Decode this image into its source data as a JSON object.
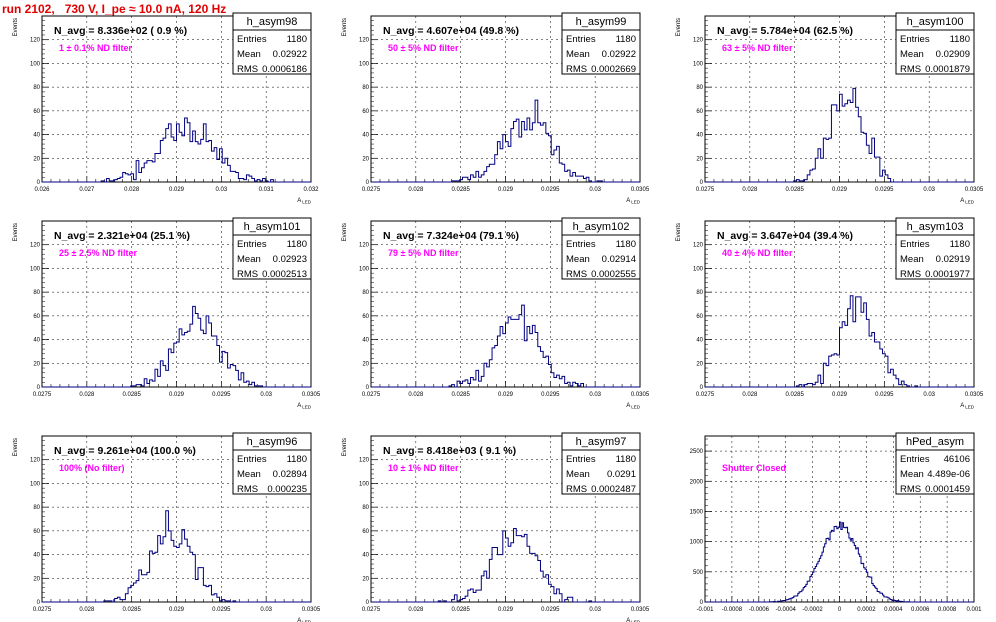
{
  "page": {
    "title": "run 2102,   730 V, I_pe ≈ 10.0 nA, 120 Hz"
  },
  "chart_data": [
    {
      "type": "bar",
      "name": "h_asym98",
      "title": "h_asym98",
      "annotation": "N_avg = 8.336e+02 ( 0.9 %)",
      "filter_label": "1 ± 0.1% ND filter",
      "stats": {
        "entries": "1180",
        "mean": "0.02922",
        "rms": "0.0006186"
      },
      "xlabel": "A_LED",
      "ylabel": "Events",
      "xlim": [
        0.026,
        0.032
      ],
      "ylim": [
        0,
        140
      ],
      "x_ticks": [
        0.026,
        0.027,
        0.028,
        0.029,
        0.03,
        0.031,
        0.032
      ],
      "x_tick_labels": [
        "0.026",
        "0.027",
        "0.028",
        "0.029",
        "0.03",
        "0.031",
        "0.032"
      ],
      "y_ticks": [
        0,
        20,
        40,
        60,
        80,
        100,
        120
      ],
      "mu": 0.02922,
      "sigma": 0.0006186,
      "bin_width": 6e-05,
      "entries": 1180,
      "seed": 11
    },
    {
      "type": "bar",
      "name": "h_asym99",
      "title": "h_asym99",
      "annotation": "N_avg = 4.607e+04 (49.8 %)",
      "filter_label": "50 ± 5% ND filter",
      "stats": {
        "entries": "1180",
        "mean": "0.02922",
        "rms": "0.0002669"
      },
      "xlabel": "A_LED",
      "ylabel": "Events",
      "xlim": [
        0.0275,
        0.0305
      ],
      "ylim": [
        0,
        140
      ],
      "x_ticks": [
        0.0275,
        0.028,
        0.0285,
        0.029,
        0.0295,
        0.03,
        0.0305
      ],
      "x_tick_labels": [
        "0.0275",
        "0.028",
        "0.0285",
        "0.029",
        "0.0295",
        "0.03",
        "0.0305"
      ],
      "y_ticks": [
        0,
        20,
        40,
        60,
        80,
        100,
        120
      ],
      "mu": 0.02922,
      "sigma": 0.0002669,
      "bin_width": 3e-05,
      "entries": 1180,
      "seed": 23
    },
    {
      "type": "bar",
      "name": "h_asym100",
      "title": "h_asym100",
      "annotation": "N_avg = 5.784e+04 (62.5 %)",
      "filter_label": "63 ± 5% ND filter",
      "stats": {
        "entries": "1180",
        "mean": "0.02909",
        "rms": "0.0001879"
      },
      "xlabel": "A_LED",
      "ylabel": "Events",
      "xlim": [
        0.0275,
        0.0305
      ],
      "ylim": [
        0,
        140
      ],
      "x_ticks": [
        0.0275,
        0.028,
        0.0285,
        0.029,
        0.0295,
        0.03,
        0.0305
      ],
      "x_tick_labels": [
        "0.0275",
        "0.028",
        "0.0285",
        "0.029",
        "0.0295",
        "0.03",
        "0.0305"
      ],
      "y_ticks": [
        0,
        20,
        40,
        60,
        80,
        100,
        120
      ],
      "mu": 0.02909,
      "sigma": 0.0001879,
      "bin_width": 3e-05,
      "entries": 1180,
      "seed": 37
    },
    {
      "type": "bar",
      "name": "h_asym101",
      "title": "h_asym101",
      "annotation": "N_avg = 2.321e+04 (25.1 %)",
      "filter_label": "25 ± 2.5% ND filter",
      "stats": {
        "entries": "1180",
        "mean": "0.02923",
        "rms": "0.0002513"
      },
      "xlabel": "A_LED",
      "ylabel": "Events",
      "xlim": [
        0.0275,
        0.0305
      ],
      "ylim": [
        0,
        140
      ],
      "x_ticks": [
        0.0275,
        0.028,
        0.0285,
        0.029,
        0.0295,
        0.03,
        0.0305
      ],
      "x_tick_labels": [
        "0.0275",
        "0.028",
        "0.0285",
        "0.029",
        "0.0295",
        "0.03",
        "0.0305"
      ],
      "y_ticks": [
        0,
        20,
        40,
        60,
        80,
        100,
        120
      ],
      "mu": 0.02923,
      "sigma": 0.0002513,
      "bin_width": 3e-05,
      "entries": 1180,
      "seed": 41
    },
    {
      "type": "bar",
      "name": "h_asym102",
      "title": "h_asym102",
      "annotation": "N_avg = 7.324e+04 (79.1 %)",
      "filter_label": "79 ± 5% ND filter",
      "stats": {
        "entries": "1180",
        "mean": "0.02914",
        "rms": "0.0002555"
      },
      "xlabel": "A_LED",
      "ylabel": "Events",
      "xlim": [
        0.0275,
        0.0305
      ],
      "ylim": [
        0,
        140
      ],
      "x_ticks": [
        0.0275,
        0.028,
        0.0285,
        0.029,
        0.0295,
        0.03,
        0.0305
      ],
      "x_tick_labels": [
        "0.0275",
        "0.028",
        "0.0285",
        "0.029",
        "0.0295",
        "0.03",
        "0.0305"
      ],
      "y_ticks": [
        0,
        20,
        40,
        60,
        80,
        100,
        120
      ],
      "mu": 0.02914,
      "sigma": 0.0002555,
      "bin_width": 3e-05,
      "entries": 1180,
      "seed": 53
    },
    {
      "type": "bar",
      "name": "h_asym103",
      "title": "h_asym103",
      "annotation": "N_avg = 3.647e+04 (39.4 %)",
      "filter_label": "40 ± 4% ND filter",
      "stats": {
        "entries": "1180",
        "mean": "0.02919",
        "rms": "0.0001977"
      },
      "xlabel": "A_LED",
      "ylabel": "Events",
      "xlim": [
        0.0275,
        0.0305
      ],
      "ylim": [
        0,
        140
      ],
      "x_ticks": [
        0.0275,
        0.028,
        0.0285,
        0.029,
        0.0295,
        0.03,
        0.0305
      ],
      "x_tick_labels": [
        "0.0275",
        "0.028",
        "0.0285",
        "0.029",
        "0.0295",
        "0.03",
        "0.0305"
      ],
      "y_ticks": [
        0,
        20,
        40,
        60,
        80,
        100,
        120
      ],
      "mu": 0.02919,
      "sigma": 0.0001977,
      "bin_width": 3e-05,
      "entries": 1180,
      "seed": 67
    },
    {
      "type": "bar",
      "name": "h_asym96",
      "title": "h_asym96",
      "annotation": "N_avg = 9.261e+04 (100.0 %)",
      "filter_label": "100% (No filter)",
      "stats": {
        "entries": "1180",
        "mean": "0.02894",
        "rms": "0.000235"
      },
      "xlabel": "A_LED",
      "ylabel": "Events",
      "xlim": [
        0.0275,
        0.0305
      ],
      "ylim": [
        0,
        140
      ],
      "x_ticks": [
        0.0275,
        0.028,
        0.0285,
        0.029,
        0.0295,
        0.03,
        0.0305
      ],
      "x_tick_labels": [
        "0.0275",
        "0.028",
        "0.0285",
        "0.029",
        "0.0295",
        "0.03",
        "0.0305"
      ],
      "y_ticks": [
        0,
        20,
        40,
        60,
        80,
        100,
        120
      ],
      "mu": 0.02894,
      "sigma": 0.000235,
      "bin_width": 3e-05,
      "entries": 1180,
      "seed": 79
    },
    {
      "type": "bar",
      "name": "h_asym97",
      "title": "h_asym97",
      "annotation": "N_avg = 8.418e+03 ( 9.1 %)",
      "filter_label": "10 ± 1% ND filter",
      "stats": {
        "entries": "1180",
        "mean": "0.0291",
        "rms": "0.0002487"
      },
      "xlabel": "A_LED",
      "ylabel": "Events",
      "xlim": [
        0.0275,
        0.0305
      ],
      "ylim": [
        0,
        140
      ],
      "x_ticks": [
        0.0275,
        0.028,
        0.0285,
        0.029,
        0.0295,
        0.03,
        0.0305
      ],
      "x_tick_labels": [
        "0.0275",
        "0.028",
        "0.0285",
        "0.029",
        "0.0295",
        "0.03",
        "0.0305"
      ],
      "y_ticks": [
        0,
        20,
        40,
        60,
        80,
        100,
        120
      ],
      "mu": 0.0291,
      "sigma": 0.0002487,
      "bin_width": 3e-05,
      "entries": 1180,
      "seed": 83
    },
    {
      "type": "bar",
      "name": "hPed_asym",
      "title": "hPed_asym",
      "annotation": "",
      "filter_label": "Shutter Closed",
      "stats": {
        "entries": "46106",
        "mean": "4.489e-06",
        "rms": "0.0001459"
      },
      "xlabel": "",
      "ylabel": "",
      "xlim": [
        -0.001,
        0.001
      ],
      "ylim": [
        0,
        2750
      ],
      "x_ticks": [
        -0.001,
        -0.0008,
        -0.0006,
        -0.0004,
        -0.0002,
        0,
        0.0002,
        0.0004,
        0.0006,
        0.0008,
        0.001
      ],
      "x_tick_labels": [
        "-0.001",
        "-0.0008",
        "-0.0006",
        "-0.0004",
        "-0.0002",
        "0",
        "0.0002",
        "0.0004",
        "0.0006",
        "0.0008",
        "0.001"
      ],
      "y_ticks": [
        0,
        500,
        1000,
        1500,
        2000,
        2500
      ],
      "mu": 4.489e-06,
      "sigma": 0.0001459,
      "bin_width": 1e-05,
      "entries": 46106,
      "seed": 97
    }
  ]
}
